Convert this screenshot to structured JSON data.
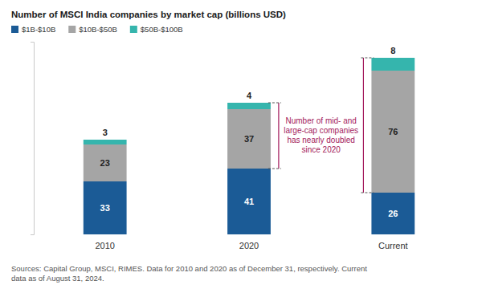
{
  "chart_data": {
    "type": "bar",
    "title": "Number of MSCI India companies by market cap (billions USD)",
    "categories": [
      "2010",
      "2020",
      "Current"
    ],
    "series": [
      {
        "name": "$1B-$10B",
        "color": "#1b5b96",
        "values": [
          33,
          41,
          26
        ]
      },
      {
        "name": "$10B-$50B",
        "color": "#a5a5a5",
        "values": [
          23,
          37,
          76
        ]
      },
      {
        "name": "$50B-$100B",
        "color": "#35b5ad",
        "values": [
          3,
          4,
          8
        ]
      }
    ],
    "stacked": true,
    "data_labels": true,
    "legend": "top-left",
    "tick_labels": "x",
    "ylim": [
      0,
      120
    ],
    "yticks": [
      0,
      120
    ],
    "annotations": [
      "Number of mid- and large-cap companies has nearly doubled since 2020"
    ],
    "source": "Sources: Capital Group, MSCI, RIMES. Data for 2010 and 2020 as of December 31, respectively. Current data as of August 31, 2024."
  }
}
